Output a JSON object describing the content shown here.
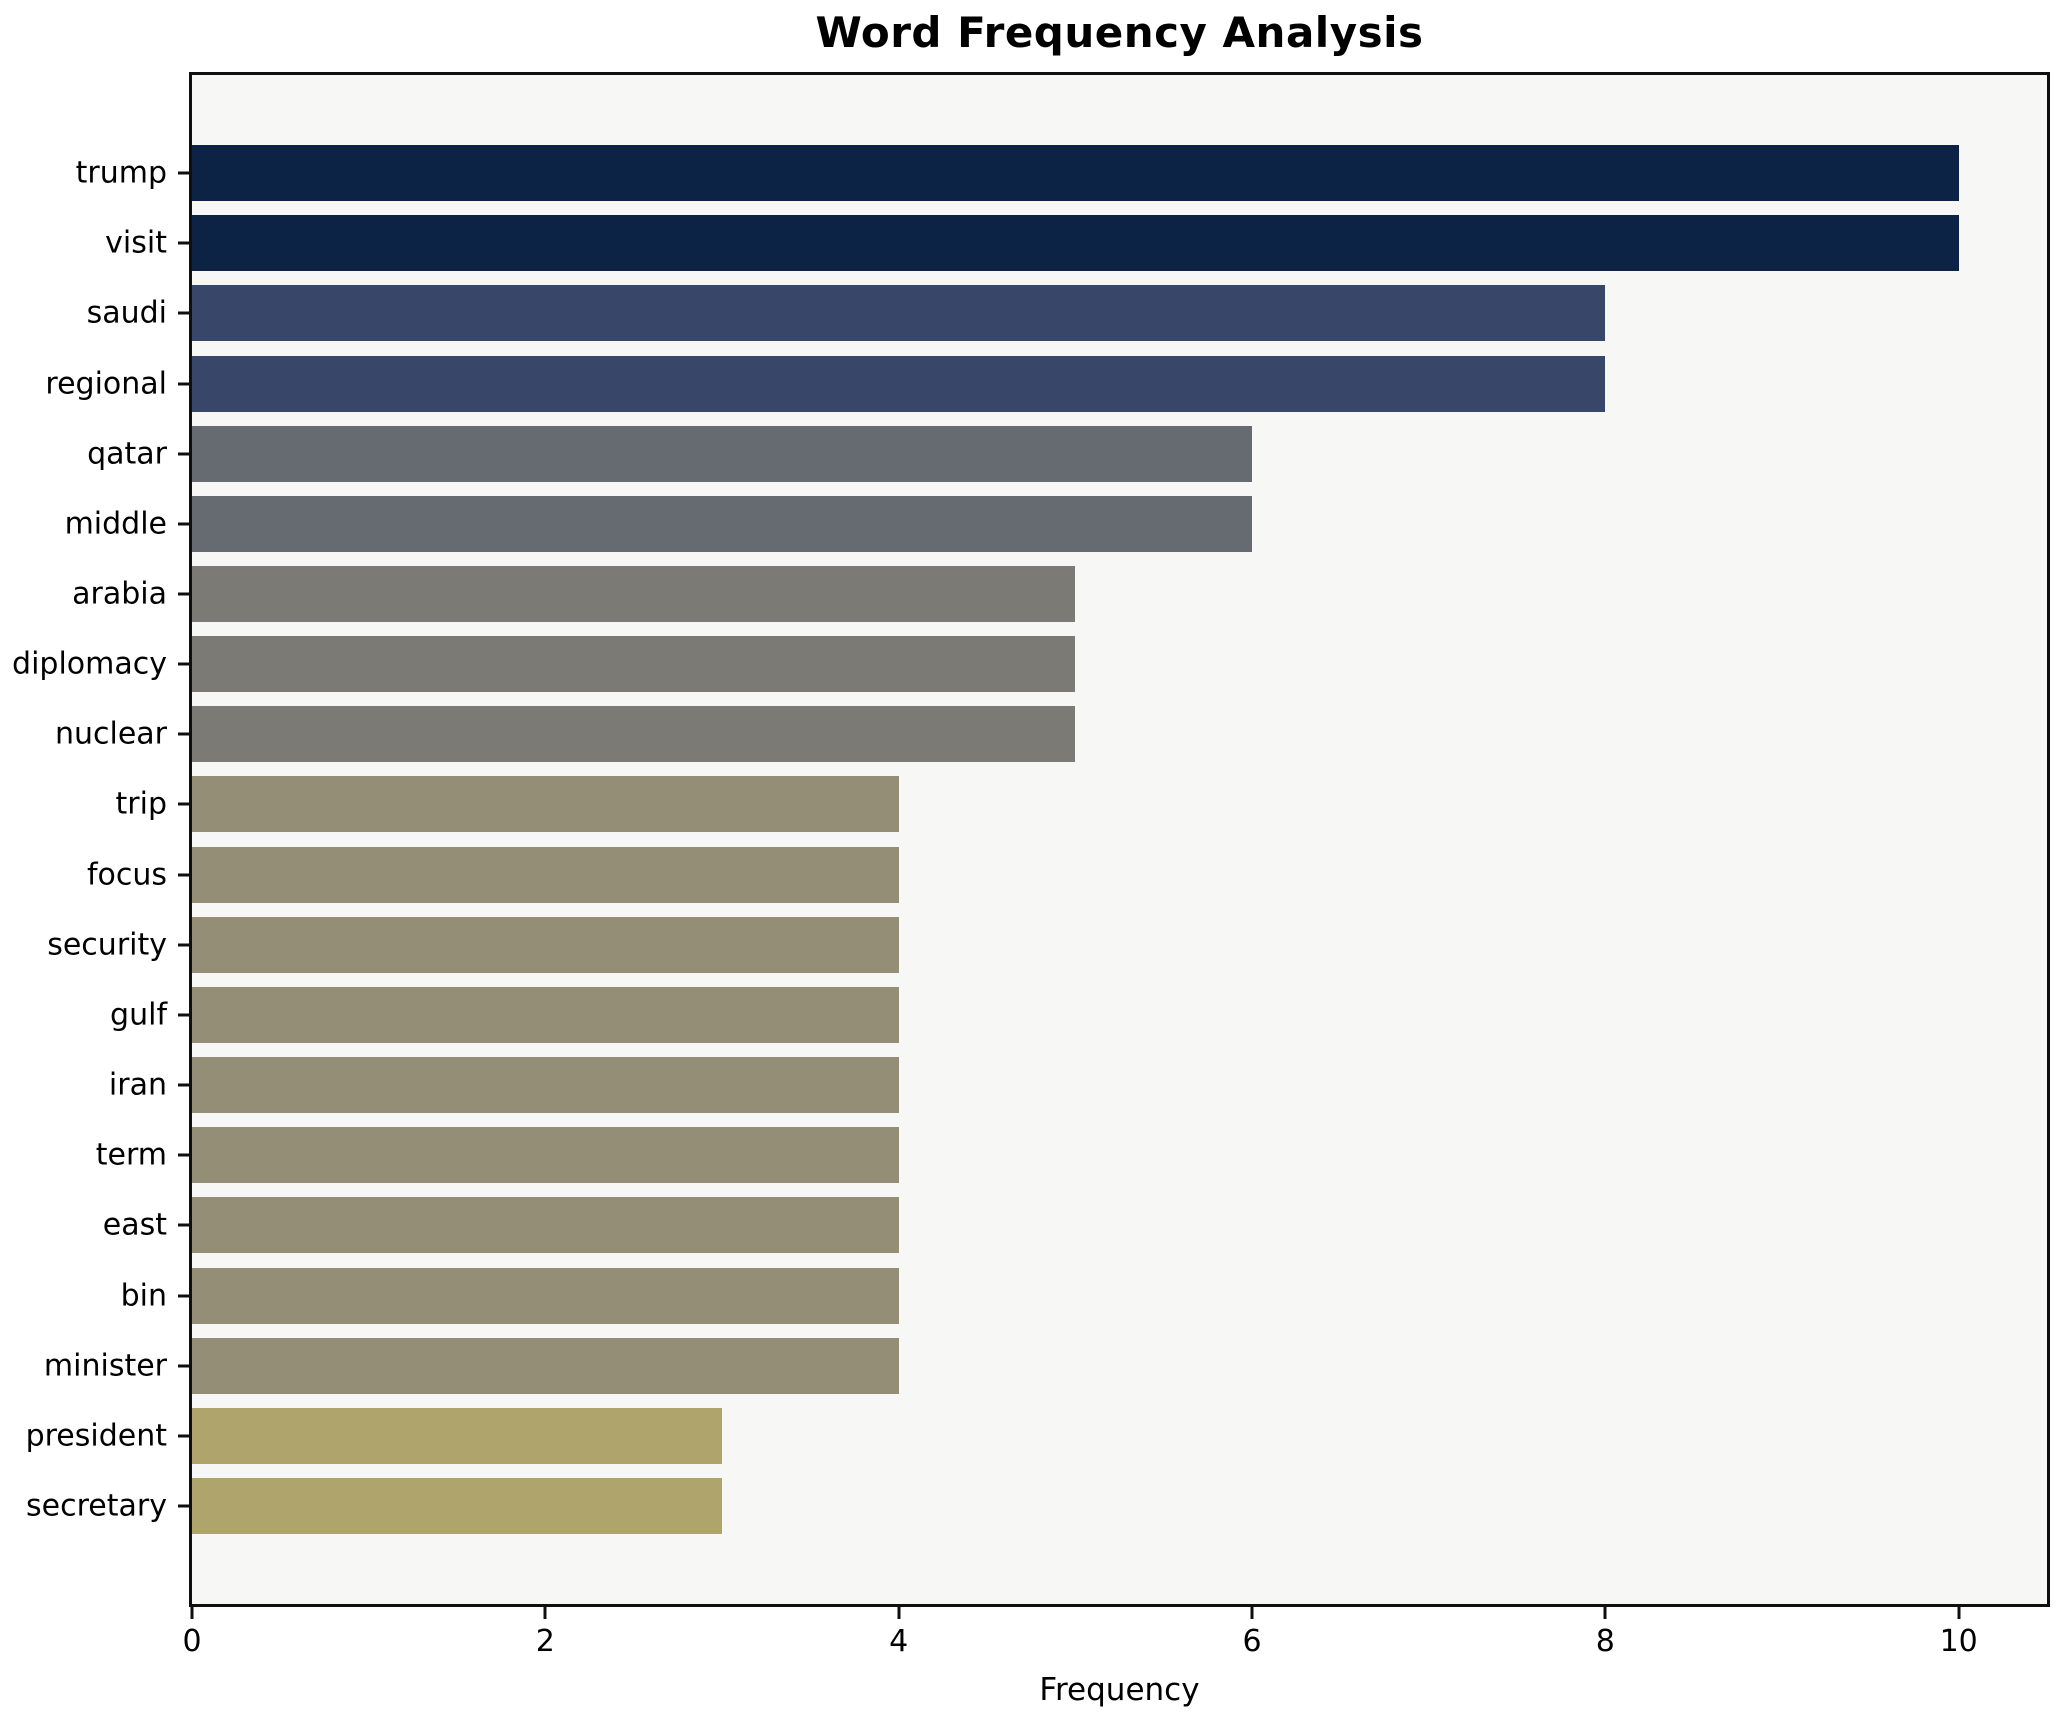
{
  "chart_data": {
    "type": "bar",
    "orientation": "horizontal",
    "title": "Word Frequency Analysis",
    "xlabel": "Frequency",
    "ylabel": "",
    "categories": [
      "trump",
      "visit",
      "saudi",
      "regional",
      "qatar",
      "middle",
      "arabia",
      "diplomacy",
      "nuclear",
      "trip",
      "focus",
      "security",
      "gulf",
      "iran",
      "term",
      "east",
      "bin",
      "minister",
      "president",
      "secretary"
    ],
    "values": [
      10,
      10,
      8,
      8,
      6,
      6,
      5,
      5,
      5,
      4,
      4,
      4,
      4,
      4,
      4,
      4,
      4,
      4,
      3,
      3
    ],
    "bar_colors": [
      "#0d2346",
      "#0d2346",
      "#38466a",
      "#38466a",
      "#666a71",
      "#666a71",
      "#7b7a75",
      "#7b7a75",
      "#7b7a75",
      "#948e76",
      "#948e76",
      "#948e76",
      "#948e76",
      "#948e76",
      "#948e76",
      "#948e76",
      "#948e76",
      "#948e76",
      "#afa56c",
      "#afa56c"
    ],
    "xlim": [
      0,
      10.5
    ],
    "xticks": [
      0,
      2,
      4,
      6,
      8,
      10
    ],
    "grid": false,
    "legend": null,
    "plot_bg": "#f7f7f5",
    "figure_bg": "#ffffff",
    "spine_color": "#0f0f0f"
  }
}
